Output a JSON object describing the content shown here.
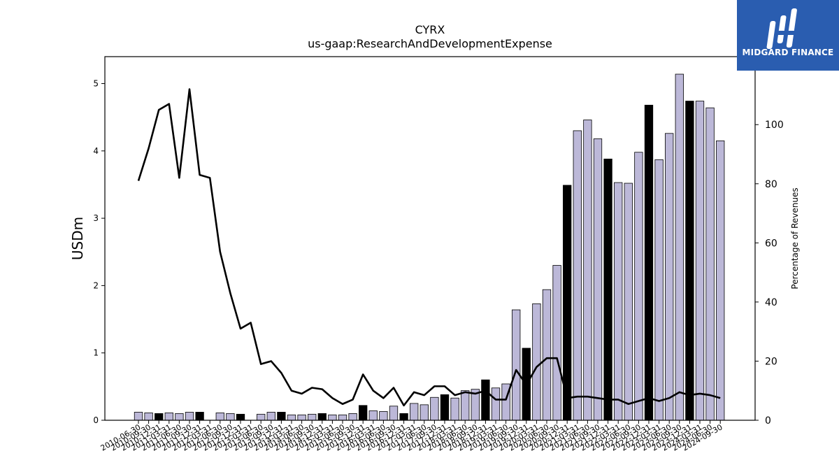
{
  "header": {
    "title": "CYRX",
    "subtitle": "us-gaap:ResearchAndDevelopmentExpense"
  },
  "logo": {
    "text": "MIDGARD FINANCE",
    "color": "#2a5db0"
  },
  "chart_data": {
    "type": "bar",
    "ylabel": "USDm",
    "y2label": "Percentage of Revenues",
    "ylim": [
      0,
      5.4
    ],
    "y2lim": [
      0,
      123
    ],
    "yticks": [
      0,
      1,
      2,
      3,
      4,
      5
    ],
    "y2ticks": [
      0,
      20,
      40,
      60,
      80,
      100
    ],
    "colors": {
      "quarter_bar": "#bcb8d8",
      "annual_bar": "#000000",
      "line": "#000000"
    },
    "categories": [
      "2010-06-30",
      "2010-09-30",
      "2010-12-31",
      "2011-03-31",
      "2011-06-30",
      "2011-09-30",
      "2011-12-31",
      "2012-03-31",
      "2012-06-30",
      "2012-09-30",
      "2012-12-31",
      "2013-03-31",
      "2013-06-30",
      "2013-09-30",
      "2013-12-31",
      "2014-03-31",
      "2014-06-30",
      "2014-09-30",
      "2014-12-31",
      "2015-03-31",
      "2015-06-30",
      "2015-09-30",
      "2015-12-31",
      "2016-03-31",
      "2016-06-30",
      "2016-09-30",
      "2016-12-31",
      "2017-03-31",
      "2017-06-30",
      "2017-09-30",
      "2017-12-31",
      "2018-03-31",
      "2018-06-30",
      "2018-09-30",
      "2018-12-31",
      "2019-03-31",
      "2019-06-30",
      "2019-09-30",
      "2019-12-31",
      "2020-03-31",
      "2020-06-30",
      "2020-09-30",
      "2020-12-31",
      "2021-03-31",
      "2021-06-30",
      "2021-09-30",
      "2021-12-31",
      "2022-03-31",
      "2022-06-30",
      "2022-09-30",
      "2022-12-31",
      "2023-03-31",
      "2023-06-30",
      "2023-09-30",
      "2023-12-31",
      "2024-03-31",
      "2024-06-30",
      "2024-09-30"
    ],
    "series": [
      {
        "values": [
          0.12,
          0.11,
          0.1,
          0.11,
          0.1,
          0.12,
          0.12,
          0,
          0.11,
          0.1,
          0.09,
          0,
          0.09,
          0.12,
          0.12,
          0.08,
          0.08,
          0.09,
          0.1,
          0.08,
          0.08,
          0.1,
          0.22,
          0.14,
          0.13,
          0.21,
          0.1,
          0.25,
          0.23,
          0.34,
          0.38,
          0.33,
          0.44,
          0.46,
          0.6,
          0.48,
          0.54,
          1.64,
          1.07,
          1.73,
          1.94,
          2.3,
          3.49,
          4.3,
          4.46,
          4.18,
          3.88,
          3.53,
          3.52,
          3.98,
          4.68,
          3.87,
          4.26,
          5.14,
          4.74,
          4.74,
          4.64,
          4.15
        ],
        "annual": [
          false,
          false,
          true,
          false,
          false,
          false,
          true,
          false,
          false,
          false,
          true,
          false,
          false,
          false,
          true,
          false,
          false,
          false,
          true,
          false,
          false,
          false,
          true,
          false,
          false,
          false,
          true,
          false,
          false,
          false,
          true,
          false,
          false,
          false,
          true,
          false,
          false,
          false,
          true,
          false,
          false,
          false,
          true,
          false,
          false,
          false,
          true,
          false,
          false,
          false,
          true,
          false,
          false,
          false,
          true,
          false,
          false,
          false
        ]
      },
      {
        "name": "Percentage of Revenues",
        "values": [
          81,
          92,
          105,
          107,
          82,
          112,
          83,
          82,
          57,
          43,
          31,
          33,
          19,
          20,
          16,
          10,
          9,
          11,
          10.5,
          7.5,
          5.5,
          7,
          15.5,
          10,
          7.5,
          11,
          5,
          9.5,
          8.5,
          11.5,
          11.5,
          8.5,
          9.5,
          9,
          10,
          7,
          7,
          17,
          12,
          18,
          21,
          21,
          7.5,
          8,
          8,
          7.5,
          7,
          7,
          5.5,
          6.5,
          7.5,
          6.5,
          7.5,
          9.5,
          8.5,
          9,
          8.5,
          7.5
        ]
      }
    ]
  }
}
